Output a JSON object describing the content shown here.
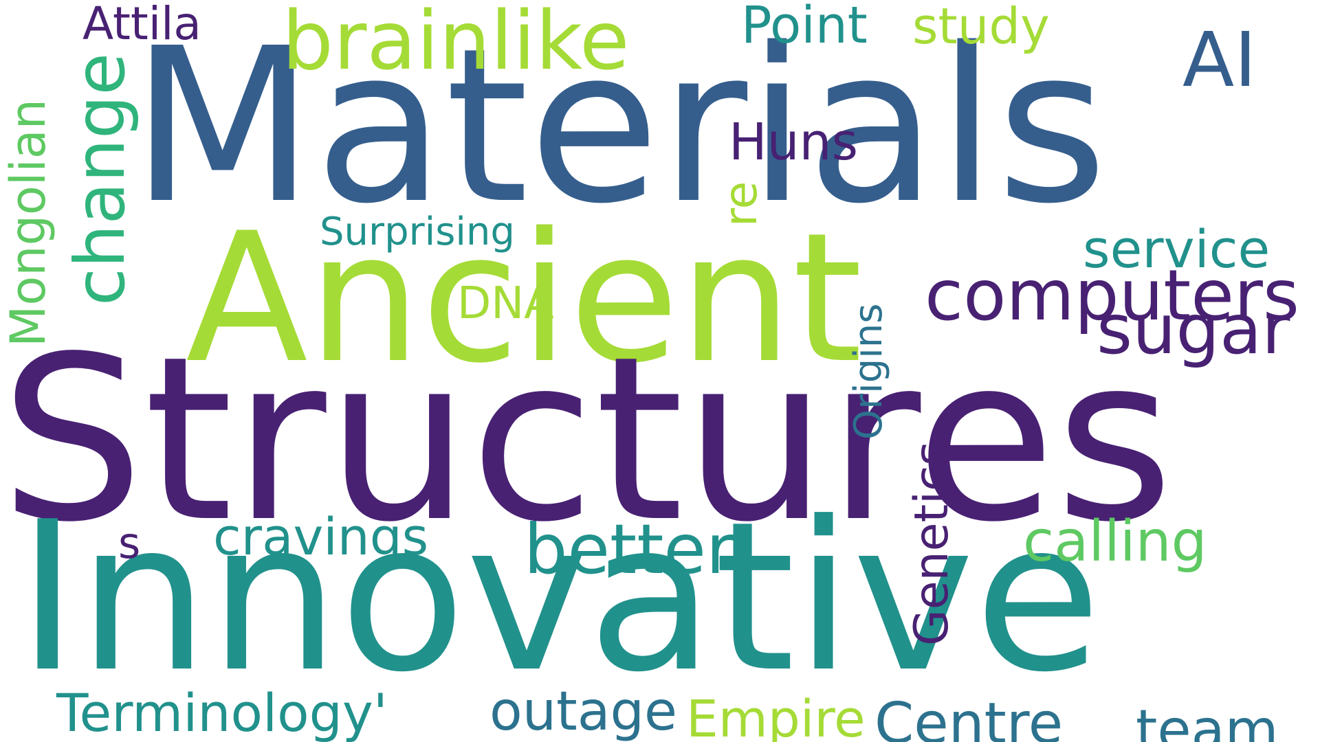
{
  "colors": {
    "background": "#ffffff",
    "dark_purple": "#482173",
    "blue": "#355e8d",
    "mid_blue": "#2c728e",
    "teal": "#21918c",
    "green": "#2fb47c",
    "light_green": "#5ec962",
    "lime": "#a5db36"
  },
  "words": {
    "materials": "Materials",
    "ancient": "Ancient",
    "structures": "Structures",
    "innovative": "Innovative",
    "brainlike": "brainlike",
    "attila": "Attila",
    "point": "Point",
    "study": "study",
    "ai": "AI",
    "huns": "Huns",
    "re": "re",
    "computers": "computers",
    "service": "service",
    "sugar": "sugar",
    "surprising": "Surprising",
    "dna": "DNA",
    "origins": "Origins",
    "genetics": "Genetics",
    "mongolian": "Mongolian",
    "change": "change",
    "s": "s",
    "cravings": "cravings",
    "better": "better",
    "calling": "calling",
    "terminology": "Terminology'",
    "outage": "outage",
    "empire": "Empire",
    "centre": "Centre",
    "team": "team"
  }
}
